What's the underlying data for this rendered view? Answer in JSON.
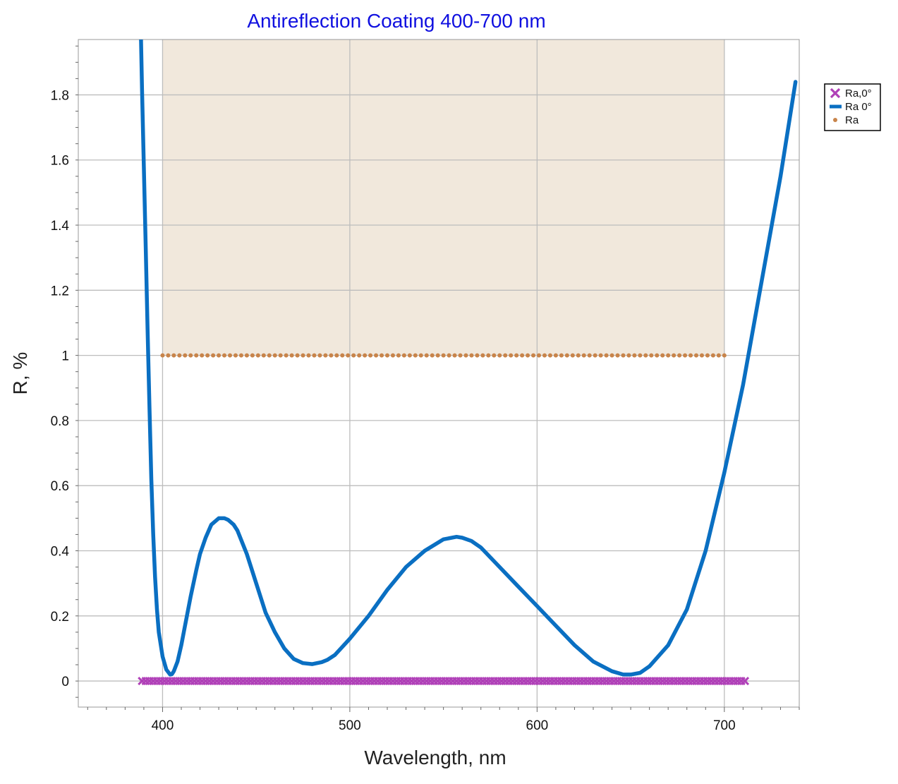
{
  "chart_data": {
    "type": "line",
    "title": "Antireflection Coating 400-700 nm",
    "xlabel": "Wavelength, nm",
    "ylabel": "R, %",
    "xlim": [
      355,
      740
    ],
    "ylim": [
      -0.08,
      1.97
    ],
    "x_ticks": [
      400,
      500,
      600,
      700
    ],
    "y_ticks": [
      0,
      0.2,
      0.4,
      0.6,
      0.8,
      1,
      1.2,
      1.4,
      1.6,
      1.8
    ],
    "y_tick_labels": [
      "0",
      "0.2",
      "0.4",
      "0.6",
      "0.8",
      "1",
      "1.2",
      "1.4",
      "1.6",
      "1.8"
    ],
    "x_minor_step": 10,
    "y_minor_step": 0.05,
    "grid": true,
    "target_band": {
      "x_range": [
        400,
        700
      ],
      "y_range": [
        1,
        1.97
      ],
      "color": "#f1e8dc"
    },
    "legend_position": "top-right",
    "series": [
      {
        "name": "Ra,0°",
        "kind": "markers",
        "marker": "x",
        "color": "#b040b8",
        "x_range": [
          389,
          711
        ],
        "x_step": 2,
        "y_value": 0
      },
      {
        "name": "Ra 0°",
        "kind": "line",
        "color": "#0a6fc2",
        "x": [
          388.5,
          389,
          390,
          391,
          392,
          393,
          394,
          395,
          396,
          397,
          398,
          400,
          402,
          404,
          405,
          406,
          408,
          410,
          412,
          415,
          418,
          420,
          423,
          426,
          430,
          433,
          435,
          438,
          440,
          445,
          450,
          455,
          460,
          465,
          470,
          475,
          480,
          485,
          488,
          492,
          500,
          510,
          520,
          530,
          540,
          550,
          557,
          560,
          565,
          570,
          580,
          590,
          600,
          610,
          620,
          630,
          640,
          646,
          650,
          655,
          660,
          670,
          680,
          690,
          700,
          710,
          720,
          730,
          738
        ],
        "y": [
          1.97,
          1.82,
          1.58,
          1.33,
          1.08,
          0.84,
          0.62,
          0.45,
          0.32,
          0.22,
          0.15,
          0.075,
          0.035,
          0.02,
          0.021,
          0.03,
          0.06,
          0.11,
          0.17,
          0.26,
          0.34,
          0.39,
          0.44,
          0.48,
          0.5,
          0.5,
          0.495,
          0.48,
          0.462,
          0.39,
          0.3,
          0.21,
          0.15,
          0.1,
          0.068,
          0.055,
          0.052,
          0.058,
          0.065,
          0.08,
          0.13,
          0.2,
          0.28,
          0.35,
          0.4,
          0.435,
          0.443,
          0.44,
          0.43,
          0.41,
          0.35,
          0.29,
          0.23,
          0.17,
          0.11,
          0.06,
          0.03,
          0.02,
          0.02,
          0.025,
          0.045,
          0.11,
          0.22,
          0.4,
          0.64,
          0.91,
          1.23,
          1.55,
          1.84
        ]
      },
      {
        "name": "Ra",
        "kind": "dots",
        "color": "#c8844a",
        "x_range": [
          400,
          700
        ],
        "x_step": 3,
        "y_value": 1
      }
    ]
  }
}
